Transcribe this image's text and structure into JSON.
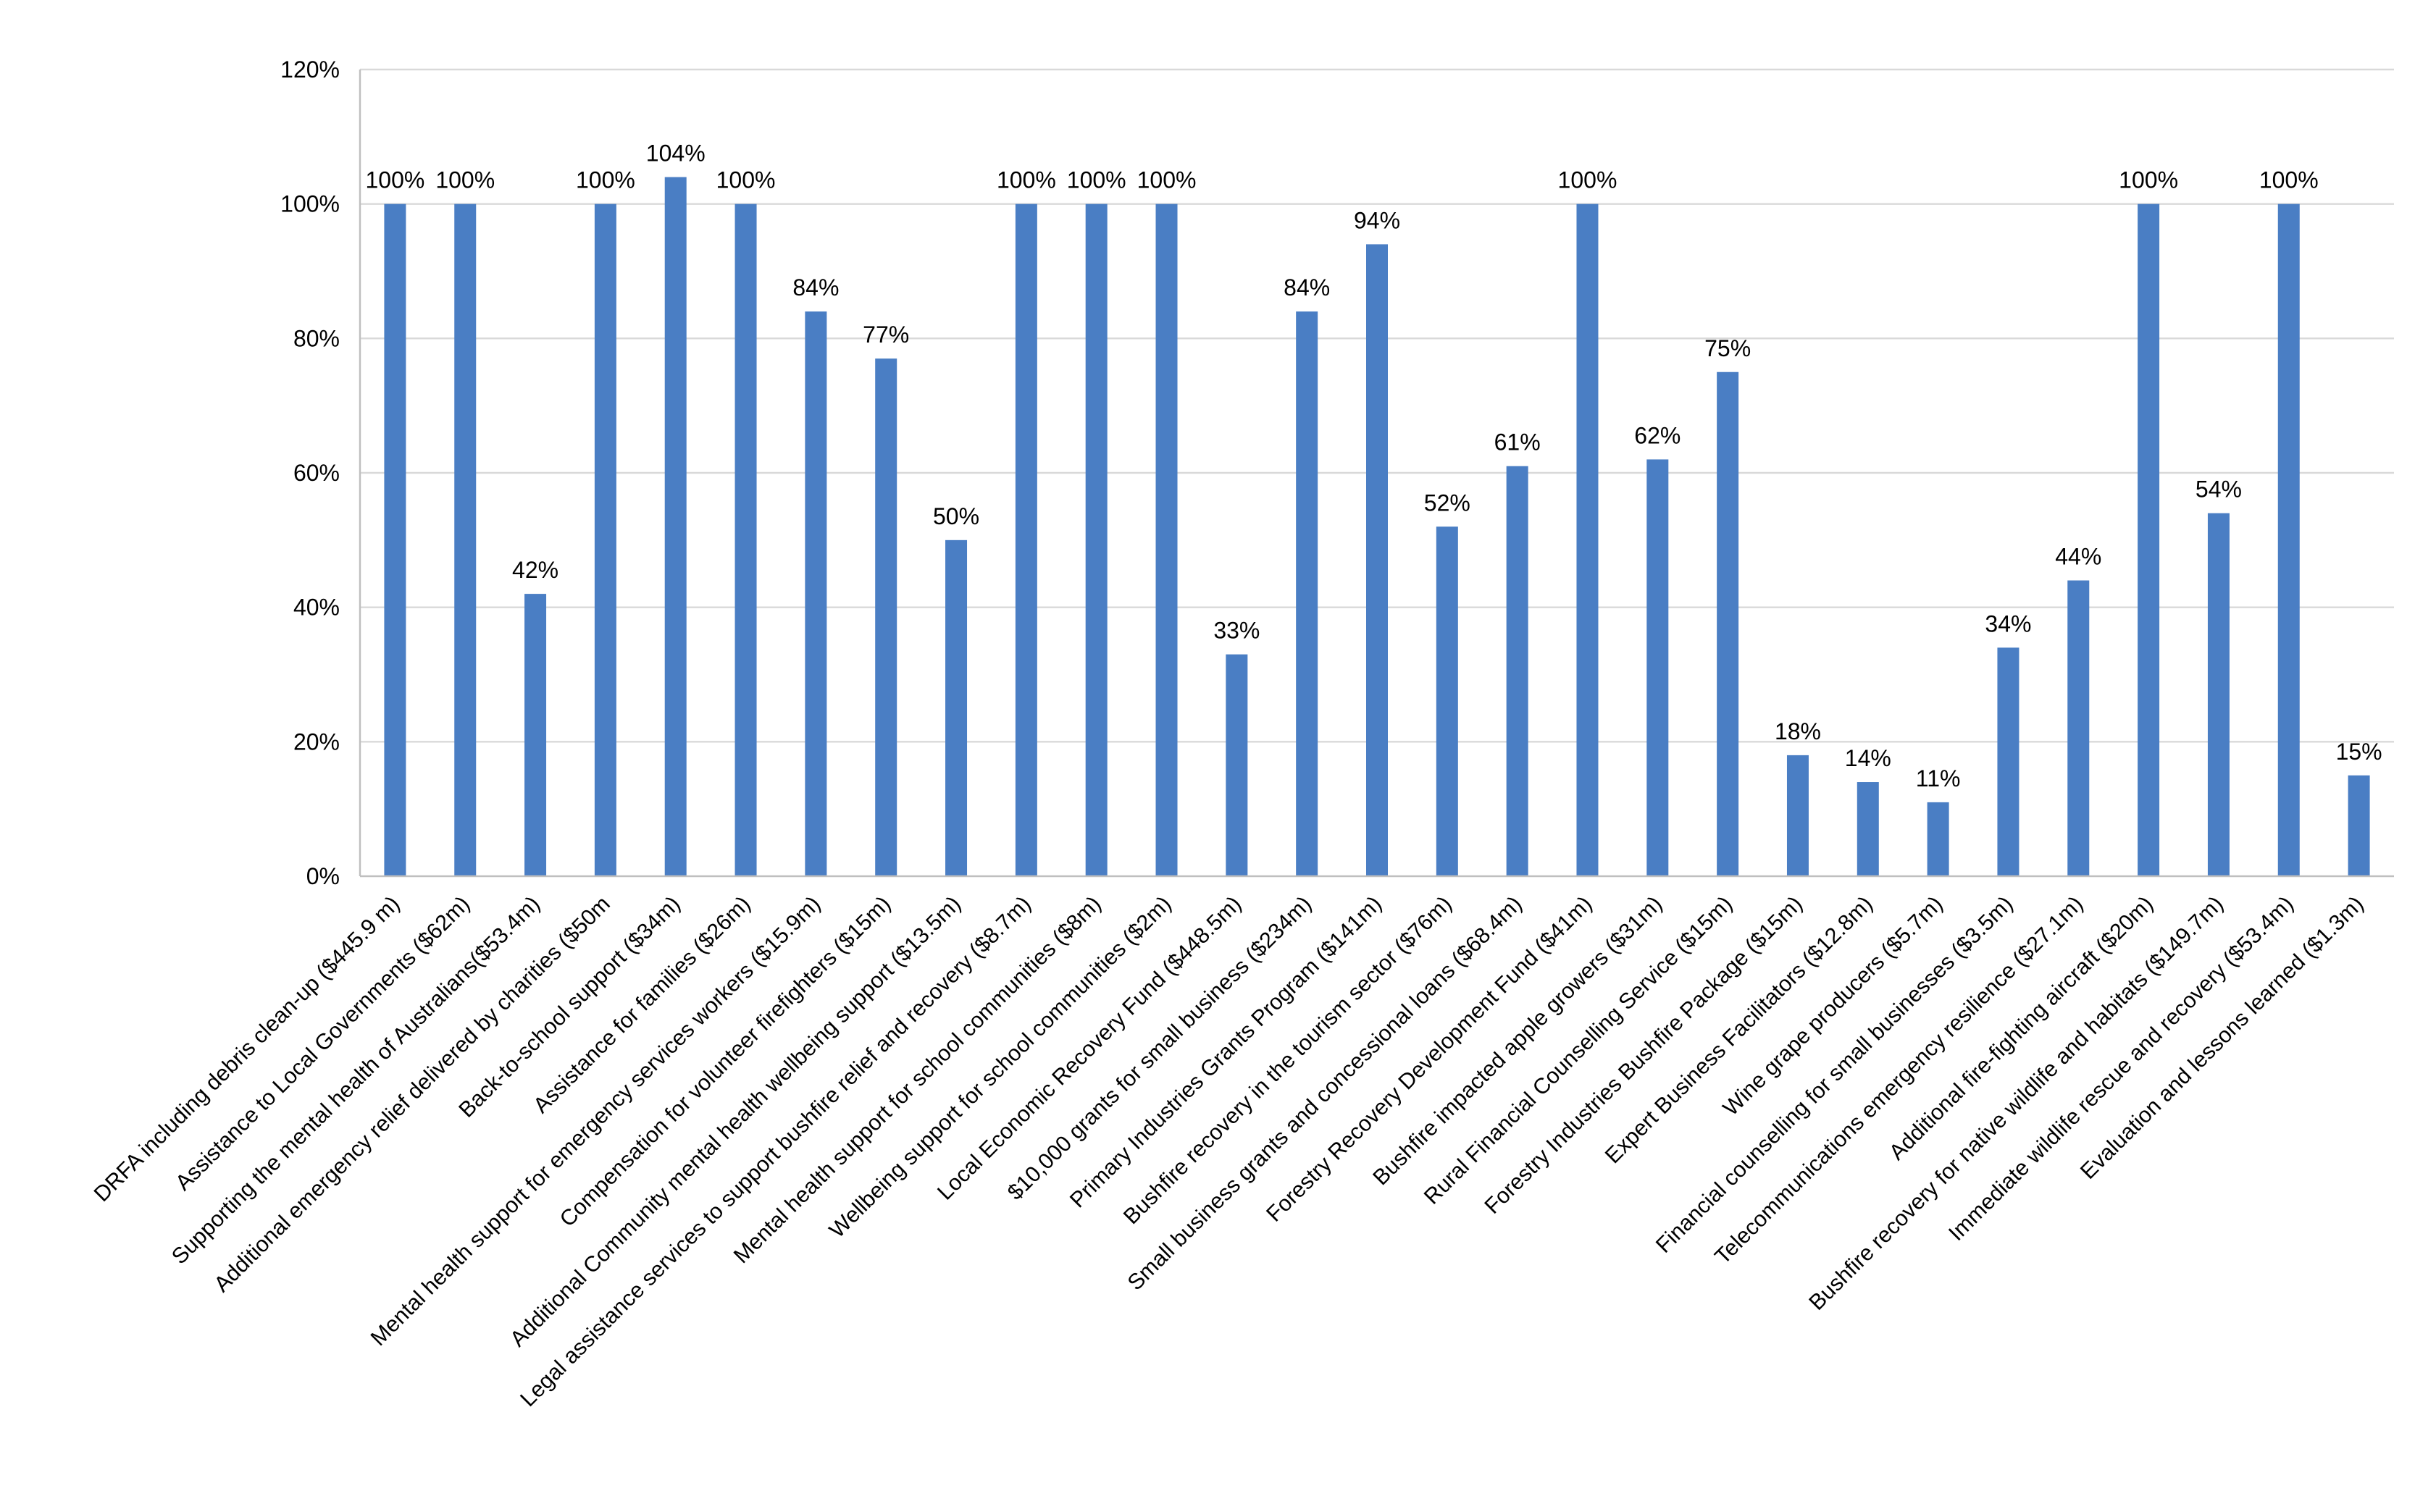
{
  "chart_data": {
    "type": "bar",
    "ylim": [
      0,
      120
    ],
    "y_ticks": [
      0,
      20,
      40,
      60,
      80,
      100,
      120
    ],
    "y_tick_labels": [
      "0%",
      "20%",
      "40%",
      "60%",
      "80%",
      "100%",
      "120%"
    ],
    "grid": true,
    "legend": "none",
    "bar_color": "#4a7ec4",
    "categories": [
      "DRFA including debris clean-up ($445.9 m)",
      "Assistance to Local Governments ($62m)",
      "Supporting the mental health of Australians($53.4m)",
      "Additional emergency relief delivered by charities ($50m",
      "Back-to-school support ($34m)",
      "Assistance for families ($26m)",
      "Mental health support for emergency services workers ($15.9m)",
      "Compensation for volunteer firefighters ($15m)",
      "Additional Community mental health wellbeing support ($13.5m)",
      "Legal assistance services to support bushfire relief and recovery ($8.7m)",
      "Mental health support for school communities ($8m)",
      "Wellbeing support for school communities ($2m)",
      "Local Economic Recovery Fund ($448.5m)",
      "$10,000 grants for small business ($234m)",
      "Primary Industries Grants Program ($141m)",
      "Bushfire recovery in the tourism sector ($76m)",
      "Small business grants and concessional loans ($68.4m)",
      "Forestry Recovery Development Fund ($41m)",
      "Bushfire impacted apple growers ($31m)",
      "Rural Financial Counselling Service ($15m)",
      "Forestry Industries Bushfire Package ($15m)",
      "Expert Business Facilitators ($12.8m)",
      "Wine grape producers ($5.7m)",
      "Financial counselling for small businesses ($3.5m)",
      "Telecommunications emergency resilience ($27.1m)",
      "Additional fire-fighting aircraft ($20m)",
      "Bushfire recovery for native wildlife and habitats ($149.7m)",
      "Immediate wildlife rescue and recovery ($53.4m)",
      "Evaluation and lessons learned ($1.3m)"
    ],
    "values": [
      100,
      100,
      42,
      100,
      104,
      100,
      84,
      77,
      50,
      100,
      100,
      100,
      33,
      84,
      94,
      52,
      61,
      100,
      62,
      75,
      18,
      14,
      11,
      34,
      44,
      100,
      54,
      100,
      15
    ],
    "data_labels": [
      "100%",
      "100%",
      "42%",
      "100%",
      "104%",
      "100%",
      "84%",
      "77%",
      "50%",
      "100%",
      "100%",
      "100%",
      "33%",
      "84%",
      "94%",
      "52%",
      "61%",
      "100%",
      "62%",
      "75%",
      "18%",
      "14%",
      "11%",
      "34%",
      "44%",
      "100%",
      "54%",
      "100%",
      "15%"
    ]
  }
}
